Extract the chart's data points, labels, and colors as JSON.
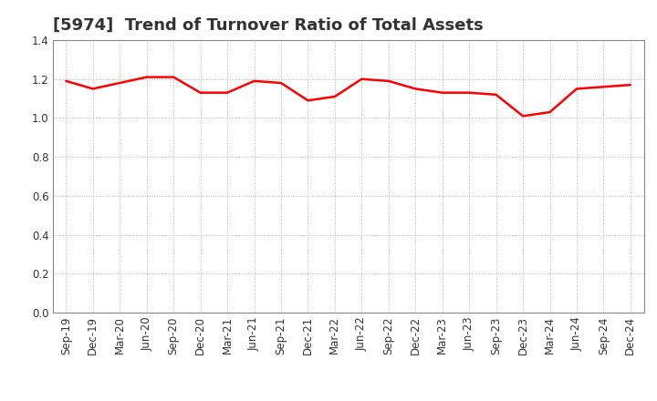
{
  "title": "[5974]  Trend of Turnover Ratio of Total Assets",
  "labels": [
    "Sep-19",
    "Dec-19",
    "Mar-20",
    "Jun-20",
    "Sep-20",
    "Dec-20",
    "Mar-21",
    "Jun-21",
    "Sep-21",
    "Dec-21",
    "Mar-22",
    "Jun-22",
    "Sep-22",
    "Dec-22",
    "Mar-23",
    "Jun-23",
    "Sep-23",
    "Dec-23",
    "Mar-24",
    "Jun-24",
    "Sep-24",
    "Dec-24"
  ],
  "values": [
    1.19,
    1.15,
    1.18,
    1.21,
    1.21,
    1.13,
    1.13,
    1.19,
    1.18,
    1.09,
    1.11,
    1.2,
    1.19,
    1.15,
    1.13,
    1.13,
    1.12,
    1.01,
    1.03,
    1.15,
    1.16,
    1.17
  ],
  "line_color": "#FF0000",
  "line_width": 1.8,
  "ylim": [
    0.0,
    1.4
  ],
  "yticks": [
    0.0,
    0.2,
    0.4,
    0.6,
    0.8,
    1.0,
    1.2,
    1.4
  ],
  "grid_color": "#aaaaaa",
  "bg_color": "#ffffff",
  "title_fontsize": 13,
  "title_color": "#333333",
  "tick_fontsize": 8.5,
  "tick_color": "#333333"
}
